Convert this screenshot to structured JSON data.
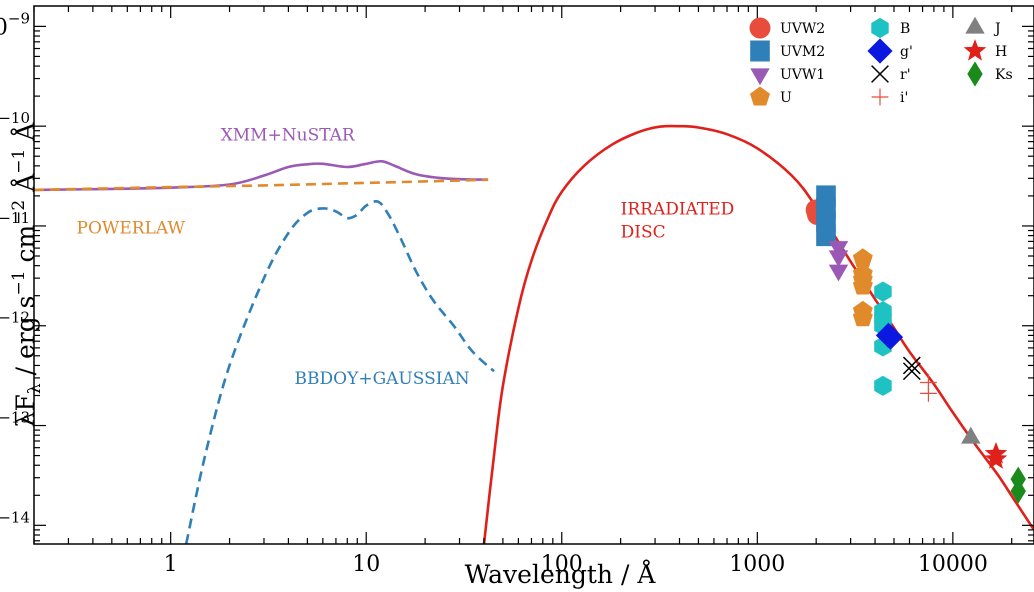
{
  "chart_data": {
    "type": "scatter",
    "xscale": "log",
    "yscale": "log",
    "xlim": [
      0.2,
      26000
    ],
    "ylim": [
      6.5e-15,
      1.6e-09
    ],
    "xlabel": "Wavelength / Å",
    "ylabel": "λF",
    "ylabel_sub": "λ",
    "ylabel_units": {
      "t1": " / erg s",
      "e1": "−1",
      "t2": " cm",
      "e2": "−2",
      "t3": " Å",
      "e3": "−1",
      "t4": " Å"
    },
    "x_ticks": [
      {
        "value": 1,
        "label": "1"
      },
      {
        "value": 10,
        "label": "10"
      },
      {
        "value": 100,
        "label": "100"
      },
      {
        "value": 1000,
        "label": "1000"
      },
      {
        "value": 10000,
        "label": "10000"
      }
    ],
    "y_ticks": [
      {
        "value": 1e-14,
        "exp": "−14"
      },
      {
        "value": 1e-13,
        "exp": "−13"
      },
      {
        "value": 1e-12,
        "exp": "−12"
      },
      {
        "value": 1e-11,
        "exp": "−11"
      },
      {
        "value": 1e-10,
        "exp": "−10"
      },
      {
        "value": 1e-09,
        "exp": "−9"
      }
    ],
    "y_tick_base": "10",
    "grid": false,
    "legend_position": "top-right",
    "curves": [
      {
        "name": "XMM+NuSTAR",
        "color": "#9b59b6",
        "style": "solid",
        "points": [
          [
            0.2,
            2.3e-11
          ],
          [
            0.5,
            2.35e-11
          ],
          [
            1,
            2.42e-11
          ],
          [
            2,
            2.6e-11
          ],
          [
            3,
            3.2e-11
          ],
          [
            4,
            3.9e-11
          ],
          [
            5,
            4.15e-11
          ],
          [
            6,
            4.2e-11
          ],
          [
            8,
            3.9e-11
          ],
          [
            10,
            4.2e-11
          ],
          [
            12,
            4.45e-11
          ],
          [
            14,
            4e-11
          ],
          [
            18,
            3.3e-11
          ],
          [
            25,
            3e-11
          ],
          [
            35,
            2.92e-11
          ],
          [
            42,
            2.92e-11
          ]
        ]
      },
      {
        "name": "POWERLAW",
        "color": "#e08a2c",
        "style": "dashed",
        "points": [
          [
            0.2,
            2.3e-11
          ],
          [
            1,
            2.45e-11
          ],
          [
            3,
            2.55e-11
          ],
          [
            10,
            2.7e-11
          ],
          [
            42,
            2.9e-11
          ]
        ]
      },
      {
        "name": "BBDOY+GAUSSIAN",
        "color": "#2f7fb8",
        "style": "dashed",
        "points": [
          [
            1.2,
            6.5e-15
          ],
          [
            1.5,
            5e-14
          ],
          [
            2,
            4e-13
          ],
          [
            3,
            3e-12
          ],
          [
            4,
            8.5e-12
          ],
          [
            5,
            1.35e-11
          ],
          [
            6,
            1.5e-11
          ],
          [
            7,
            1.4e-11
          ],
          [
            8,
            1.2e-11
          ],
          [
            9,
            1.3e-11
          ],
          [
            10,
            1.6e-11
          ],
          [
            11.5,
            1.75e-11
          ],
          [
            13,
            1.3e-11
          ],
          [
            15,
            7.5e-12
          ],
          [
            18,
            3.5e-12
          ],
          [
            22,
            1.8e-12
          ],
          [
            28,
            1e-12
          ],
          [
            35,
            5.5e-13
          ],
          [
            45,
            3.5e-13
          ]
        ]
      },
      {
        "name": "IRRADIATED DISC",
        "color": "#e0201b",
        "style": "solid",
        "points": [
          [
            40,
            6.5e-15
          ],
          [
            45,
            5e-14
          ],
          [
            50,
            2.5e-13
          ],
          [
            60,
            1.5e-12
          ],
          [
            70,
            4.5e-12
          ],
          [
            85,
            1.2e-11
          ],
          [
            100,
            2.2e-11
          ],
          [
            130,
            4e-11
          ],
          [
            180,
            6.5e-11
          ],
          [
            250,
            8.8e-11
          ],
          [
            320,
            9.9e-11
          ],
          [
            400,
            1e-10
          ],
          [
            500,
            9.7e-11
          ],
          [
            700,
            8.3e-11
          ],
          [
            1000,
            6e-11
          ],
          [
            1500,
            3.2e-11
          ],
          [
            2000,
            1.55e-11
          ],
          [
            3000,
            4.4e-12
          ],
          [
            4000,
            1.85e-12
          ],
          [
            5000,
            9.5e-13
          ],
          [
            6000,
            5.5e-13
          ],
          [
            8000,
            2.6e-13
          ],
          [
            10000,
            1.35e-13
          ],
          [
            13000,
            6.5e-14
          ],
          [
            17000,
            3.2e-14
          ],
          [
            21000,
            1.7e-14
          ],
          [
            26000,
            9e-15
          ]
        ]
      }
    ],
    "annotations": [
      {
        "text": "XMM+NuSTAR",
        "color": "#9b59b6",
        "x": 1.8,
        "y": 7.2e-11
      },
      {
        "text": "POWERLAW",
        "color": "#e08a2c",
        "x": 0.33,
        "y": 8.4e-12
      },
      {
        "text": "BBDOY+GAUSSIAN",
        "color": "#2f7fb8",
        "x": 4.3,
        "y": 2.6e-13
      },
      {
        "text": "IRRADIATED",
        "color": "#e0201b",
        "x": 200,
        "y": 1.3e-11
      },
      {
        "text": "DISC",
        "color": "#e0201b",
        "x": 200,
        "y": 7.7e-12
      }
    ],
    "series": [
      {
        "name": "UVW2",
        "color": "#e74c3c",
        "marker": "circle",
        "points": [
          [
            2000,
            1.45e-11
          ],
          [
            2030,
            1.3e-11
          ]
        ]
      },
      {
        "name": "UVM2",
        "color": "#2f7fb8",
        "marker": "square",
        "points": [
          [
            2245,
            2e-11
          ],
          [
            2245,
            1.5e-11
          ],
          [
            2245,
            1.1e-11
          ],
          [
            2245,
            8e-12
          ]
        ]
      },
      {
        "name": "UVW1",
        "color": "#9b59b6",
        "marker": "triangle-down",
        "points": [
          [
            2600,
            6.2e-12
          ],
          [
            2600,
            5e-12
          ],
          [
            2600,
            3.6e-12
          ]
        ]
      },
      {
        "name": "U",
        "color": "#e08a2c",
        "marker": "pentagon",
        "points": [
          [
            3465,
            4.7e-12
          ],
          [
            3465,
            3.3e-12
          ],
          [
            3465,
            2.9e-12
          ],
          [
            3465,
            2.5e-12
          ],
          [
            3465,
            1.4e-12
          ],
          [
            3465,
            1.2e-12
          ]
        ]
      },
      {
        "name": "B",
        "color": "#1fc2c2",
        "marker": "hexagon",
        "points": [
          [
            4390,
            2.2e-12
          ],
          [
            4390,
            1.4e-12
          ],
          [
            4390,
            1.2e-12
          ],
          [
            4390,
            1e-12
          ],
          [
            4390,
            6.2e-13
          ],
          [
            4390,
            2.5e-13
          ]
        ]
      },
      {
        "name": "g'",
        "color": "#0a18e0",
        "marker": "diamond",
        "points": [
          [
            4680,
            8e-13
          ],
          [
            4800,
            7.7e-13
          ]
        ]
      },
      {
        "name": "r'",
        "color": "#000000",
        "marker": "x",
        "points": [
          [
            6170,
            4e-13
          ],
          [
            6170,
            3.5e-13
          ]
        ]
      },
      {
        "name": "i'",
        "color": "#e74c3c",
        "marker": "plus",
        "points": [
          [
            7500,
            2.7e-13
          ],
          [
            7500,
            2.1e-13
          ]
        ]
      },
      {
        "name": "J",
        "color": "#808080",
        "marker": "triangle-up",
        "points": [
          [
            12350,
            7.5e-14
          ]
        ]
      },
      {
        "name": "H",
        "color": "#e0201b",
        "marker": "star",
        "points": [
          [
            16620,
            5.2e-14
          ],
          [
            16620,
            4.6e-14
          ]
        ]
      },
      {
        "name": "Ks",
        "color": "#1a8a1a",
        "marker": "thin-diamond",
        "points": [
          [
            21590,
            2.9e-14
          ],
          [
            21590,
            2.2e-14
          ]
        ]
      }
    ]
  }
}
